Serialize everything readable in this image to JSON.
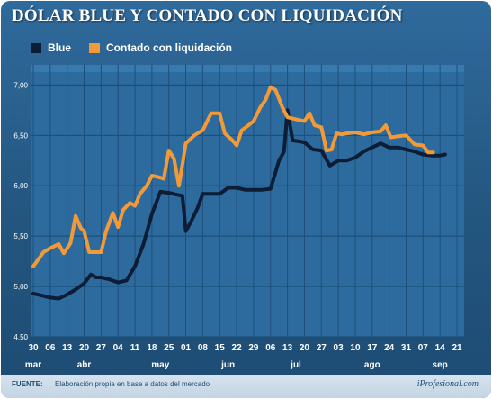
{
  "title": "DÓLAR BLUE Y CONTADO CON LIQUIDACIÓN",
  "colors": {
    "blue_series": "#0c1d35",
    "ccl_series": "#f29a38",
    "plot_bg": "#2d6b9f",
    "grid": "#1d4f7a",
    "text": "#ffffff"
  },
  "footer": {
    "source_key": "FUENTE:",
    "source_text": "Elaboración propia en base a datos del mercado",
    "brand": "iProfesional.com"
  },
  "chart_data": {
    "type": "line",
    "title": "DÓLAR BLUE Y CONTADO CON LIQUIDACIÓN",
    "legend_position": "top-left",
    "grid": true,
    "ylim": [
      4.5,
      7.2
    ],
    "y_ticks": [
      4.5,
      5.0,
      5.5,
      6.0,
      6.5,
      7.0
    ],
    "y_tick_labels": [
      "4,50",
      "5,00",
      "5,50",
      "6,00",
      "6,50",
      "7,00"
    ],
    "x_ticks": [
      "30",
      "06",
      "13",
      "20",
      "27",
      "04",
      "11",
      "18",
      "25",
      "01",
      "08",
      "15",
      "22",
      "29",
      "06",
      "13",
      "20",
      "27",
      "03",
      "10",
      "17",
      "24",
      "31",
      "07",
      "14",
      "21"
    ],
    "x_tick_labels": [
      "30",
      "06",
      "13",
      "20",
      "27",
      "04",
      "11",
      "18",
      "25",
      "01",
      "08",
      "15",
      "22",
      "29",
      "06",
      "13",
      "20",
      "27",
      "03",
      "10",
      "17",
      "24",
      "31",
      "07",
      "14",
      "21"
    ],
    "month_labels": [
      {
        "label": "mar",
        "tick": 0
      },
      {
        "label": "abr",
        "tick": 3
      },
      {
        "label": "may",
        "tick": 7.5
      },
      {
        "label": "jun",
        "tick": 11.5
      },
      {
        "label": "jul",
        "tick": 15.5
      },
      {
        "label": "ago",
        "tick": 20
      },
      {
        "label": "sep",
        "tick": 24
      }
    ],
    "series": [
      {
        "name": "Blue",
        "color": "#0c1d35",
        "points": [
          [
            0,
            4.93
          ],
          [
            0.5,
            4.91
          ],
          [
            1,
            4.89
          ],
          [
            1.5,
            4.88
          ],
          [
            2,
            4.92
          ],
          [
            2.5,
            4.97
          ],
          [
            3,
            5.03
          ],
          [
            3.4,
            5.12
          ],
          [
            3.7,
            5.09
          ],
          [
            4,
            5.09
          ],
          [
            4.5,
            5.07
          ],
          [
            5,
            5.04
          ],
          [
            5.5,
            5.06
          ],
          [
            6,
            5.2
          ],
          [
            6.5,
            5.42
          ],
          [
            7,
            5.72
          ],
          [
            7.5,
            5.94
          ],
          [
            8,
            5.93
          ],
          [
            8.5,
            5.91
          ],
          [
            8.8,
            5.9
          ],
          [
            9,
            5.55
          ],
          [
            9.3,
            5.64
          ],
          [
            9.7,
            5.78
          ],
          [
            10,
            5.92
          ],
          [
            10.5,
            5.92
          ],
          [
            11,
            5.92
          ],
          [
            11.5,
            5.98
          ],
          [
            12,
            5.98
          ],
          [
            12.5,
            5.96
          ],
          [
            13,
            5.96
          ],
          [
            13.5,
            5.96
          ],
          [
            14,
            5.97
          ],
          [
            14.5,
            6.25
          ],
          [
            14.8,
            6.34
          ],
          [
            15,
            6.75
          ],
          [
            15.3,
            6.45
          ],
          [
            15.7,
            6.44
          ],
          [
            16,
            6.43
          ],
          [
            16.5,
            6.36
          ],
          [
            17,
            6.35
          ],
          [
            17.5,
            6.2
          ],
          [
            18,
            6.25
          ],
          [
            18.5,
            6.25
          ],
          [
            19,
            6.28
          ],
          [
            19.5,
            6.34
          ],
          [
            20,
            6.38
          ],
          [
            20.5,
            6.42
          ],
          [
            21,
            6.38
          ],
          [
            21.5,
            6.38
          ],
          [
            22,
            6.36
          ],
          [
            22.5,
            6.34
          ],
          [
            23,
            6.31
          ],
          [
            23.5,
            6.3
          ],
          [
            24,
            6.3
          ],
          [
            24.3,
            6.31
          ]
        ]
      },
      {
        "name": "Contado con liquidación",
        "color": "#f29a38",
        "points": [
          [
            0,
            5.2
          ],
          [
            0.3,
            5.27
          ],
          [
            0.6,
            5.34
          ],
          [
            1,
            5.38
          ],
          [
            1.5,
            5.42
          ],
          [
            1.8,
            5.33
          ],
          [
            2.2,
            5.43
          ],
          [
            2.5,
            5.7
          ],
          [
            2.8,
            5.58
          ],
          [
            3,
            5.55
          ],
          [
            3.3,
            5.34
          ],
          [
            3.7,
            5.34
          ],
          [
            4,
            5.34
          ],
          [
            4.3,
            5.55
          ],
          [
            4.7,
            5.73
          ],
          [
            5,
            5.59
          ],
          [
            5.3,
            5.76
          ],
          [
            5.7,
            5.83
          ],
          [
            6,
            5.8
          ],
          [
            6.3,
            5.92
          ],
          [
            6.7,
            6.0
          ],
          [
            7,
            6.1
          ],
          [
            7.3,
            6.09
          ],
          [
            7.7,
            6.07
          ],
          [
            8,
            6.35
          ],
          [
            8.3,
            6.27
          ],
          [
            8.6,
            6.0
          ],
          [
            9,
            6.42
          ],
          [
            9.5,
            6.5
          ],
          [
            10,
            6.55
          ],
          [
            10.5,
            6.72
          ],
          [
            11,
            6.72
          ],
          [
            11.3,
            6.52
          ],
          [
            11.7,
            6.46
          ],
          [
            12,
            6.4
          ],
          [
            12.3,
            6.55
          ],
          [
            12.7,
            6.6
          ],
          [
            13,
            6.64
          ],
          [
            13.4,
            6.78
          ],
          [
            13.7,
            6.85
          ],
          [
            14,
            6.98
          ],
          [
            14.3,
            6.95
          ],
          [
            14.7,
            6.78
          ],
          [
            15,
            6.68
          ],
          [
            15.5,
            6.66
          ],
          [
            16,
            6.64
          ],
          [
            16.3,
            6.72
          ],
          [
            16.6,
            6.6
          ],
          [
            17,
            6.58
          ],
          [
            17.3,
            6.35
          ],
          [
            17.6,
            6.36
          ],
          [
            17.9,
            6.52
          ],
          [
            18.2,
            6.51
          ],
          [
            18.5,
            6.52
          ],
          [
            19,
            6.53
          ],
          [
            19.5,
            6.51
          ],
          [
            20,
            6.53
          ],
          [
            20.5,
            6.54
          ],
          [
            20.8,
            6.6
          ],
          [
            21.1,
            6.48
          ],
          [
            21.5,
            6.49
          ],
          [
            22,
            6.5
          ],
          [
            22.5,
            6.41
          ],
          [
            23,
            6.4
          ],
          [
            23.3,
            6.33
          ],
          [
            23.6,
            6.33
          ]
        ]
      }
    ]
  }
}
